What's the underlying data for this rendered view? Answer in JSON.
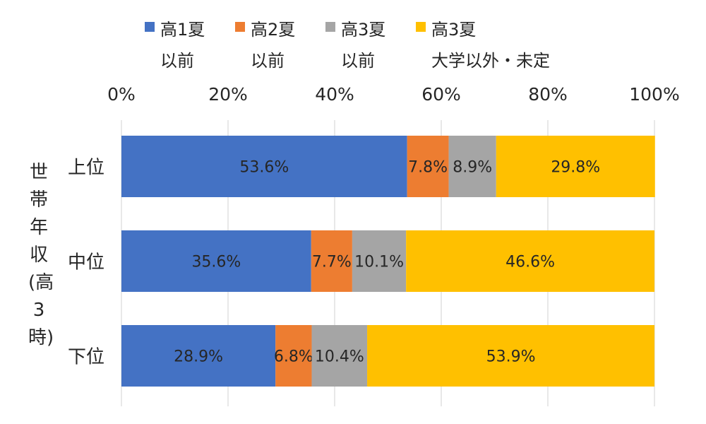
{
  "chart_data": {
    "type": "bar",
    "orientation": "horizontal",
    "stacked": true,
    "categories": [
      "上位",
      "中位",
      "下位"
    ],
    "series": [
      {
        "name": "高1夏以前",
        "values": [
          53.6,
          35.6,
          28.9
        ],
        "color": "#4472C4"
      },
      {
        "name": "高2夏以前",
        "values": [
          7.8,
          7.7,
          6.8
        ],
        "color": "#ED7D31"
      },
      {
        "name": "高3夏以前",
        "values": [
          8.9,
          10.1,
          10.4
        ],
        "color": "#A5A5A5"
      },
      {
        "name": "高3夏大学以外・未定",
        "values": [
          29.8,
          46.6,
          53.9
        ],
        "color": "#FFC000"
      }
    ],
    "legend": [
      {
        "line1": "高1夏",
        "line2": "以前"
      },
      {
        "line1": "高2夏",
        "line2": "以前"
      },
      {
        "line1": "高3夏",
        "line2": "以前"
      },
      {
        "line1": "高3夏",
        "line2": "大学以外・未定"
      }
    ],
    "data_labels": [
      [
        "53.6%",
        "7.8%",
        "8.9%",
        "29.8%"
      ],
      [
        "35.6%",
        "7.7%",
        "10.1%",
        "46.6%"
      ],
      [
        "28.9%",
        "6.8%",
        "10.4%",
        "53.9%"
      ]
    ],
    "xticks": [
      "0%",
      "20%",
      "40%",
      "60%",
      "80%",
      "100%"
    ],
    "xlim": [
      0,
      100
    ],
    "ylabel": "世帯年収(高3時)",
    "grid": true,
    "legend_position": "top"
  }
}
